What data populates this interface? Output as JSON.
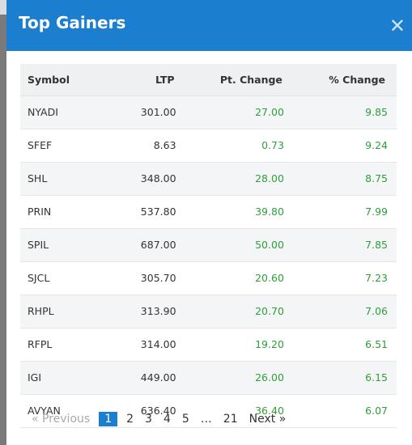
{
  "modal": {
    "title": "Top Gainers",
    "close_glyph": "✕"
  },
  "table": {
    "headers": {
      "symbol": "Symbol",
      "ltp": "LTP",
      "pt_change": "Pt. Change",
      "pct_change": "% Change"
    },
    "rows": [
      {
        "symbol": "NYADI",
        "ltp": "301.00",
        "pt_change": "27.00",
        "pct_change": "9.85"
      },
      {
        "symbol": "SFEF",
        "ltp": "8.63",
        "pt_change": "0.73",
        "pct_change": "9.24"
      },
      {
        "symbol": "SHL",
        "ltp": "348.00",
        "pt_change": "28.00",
        "pct_change": "8.75"
      },
      {
        "symbol": "PRIN",
        "ltp": "537.80",
        "pt_change": "39.80",
        "pct_change": "7.99"
      },
      {
        "symbol": "SPIL",
        "ltp": "687.00",
        "pt_change": "50.00",
        "pct_change": "7.85"
      },
      {
        "symbol": "SJCL",
        "ltp": "305.70",
        "pt_change": "20.60",
        "pct_change": "7.23"
      },
      {
        "symbol": "RHPL",
        "ltp": "313.90",
        "pt_change": "20.70",
        "pct_change": "7.06"
      },
      {
        "symbol": "RFPL",
        "ltp": "314.00",
        "pt_change": "19.20",
        "pct_change": "6.51"
      },
      {
        "symbol": "IGI",
        "ltp": "449.00",
        "pt_change": "26.00",
        "pct_change": "6.15"
      },
      {
        "symbol": "AVYAN",
        "ltp": "636.40",
        "pt_change": "36.40",
        "pct_change": "6.07"
      }
    ]
  },
  "pagination": {
    "previous": "« Previous",
    "pages": [
      "1",
      "2",
      "3",
      "4",
      "5"
    ],
    "ellipsis": "…",
    "last": "21",
    "next": "Next »",
    "active_page": "1"
  },
  "colors": {
    "header_bg": "#1c7ecf",
    "positive": "#2e9f3a",
    "active_page_bg": "#1c7ecf"
  }
}
